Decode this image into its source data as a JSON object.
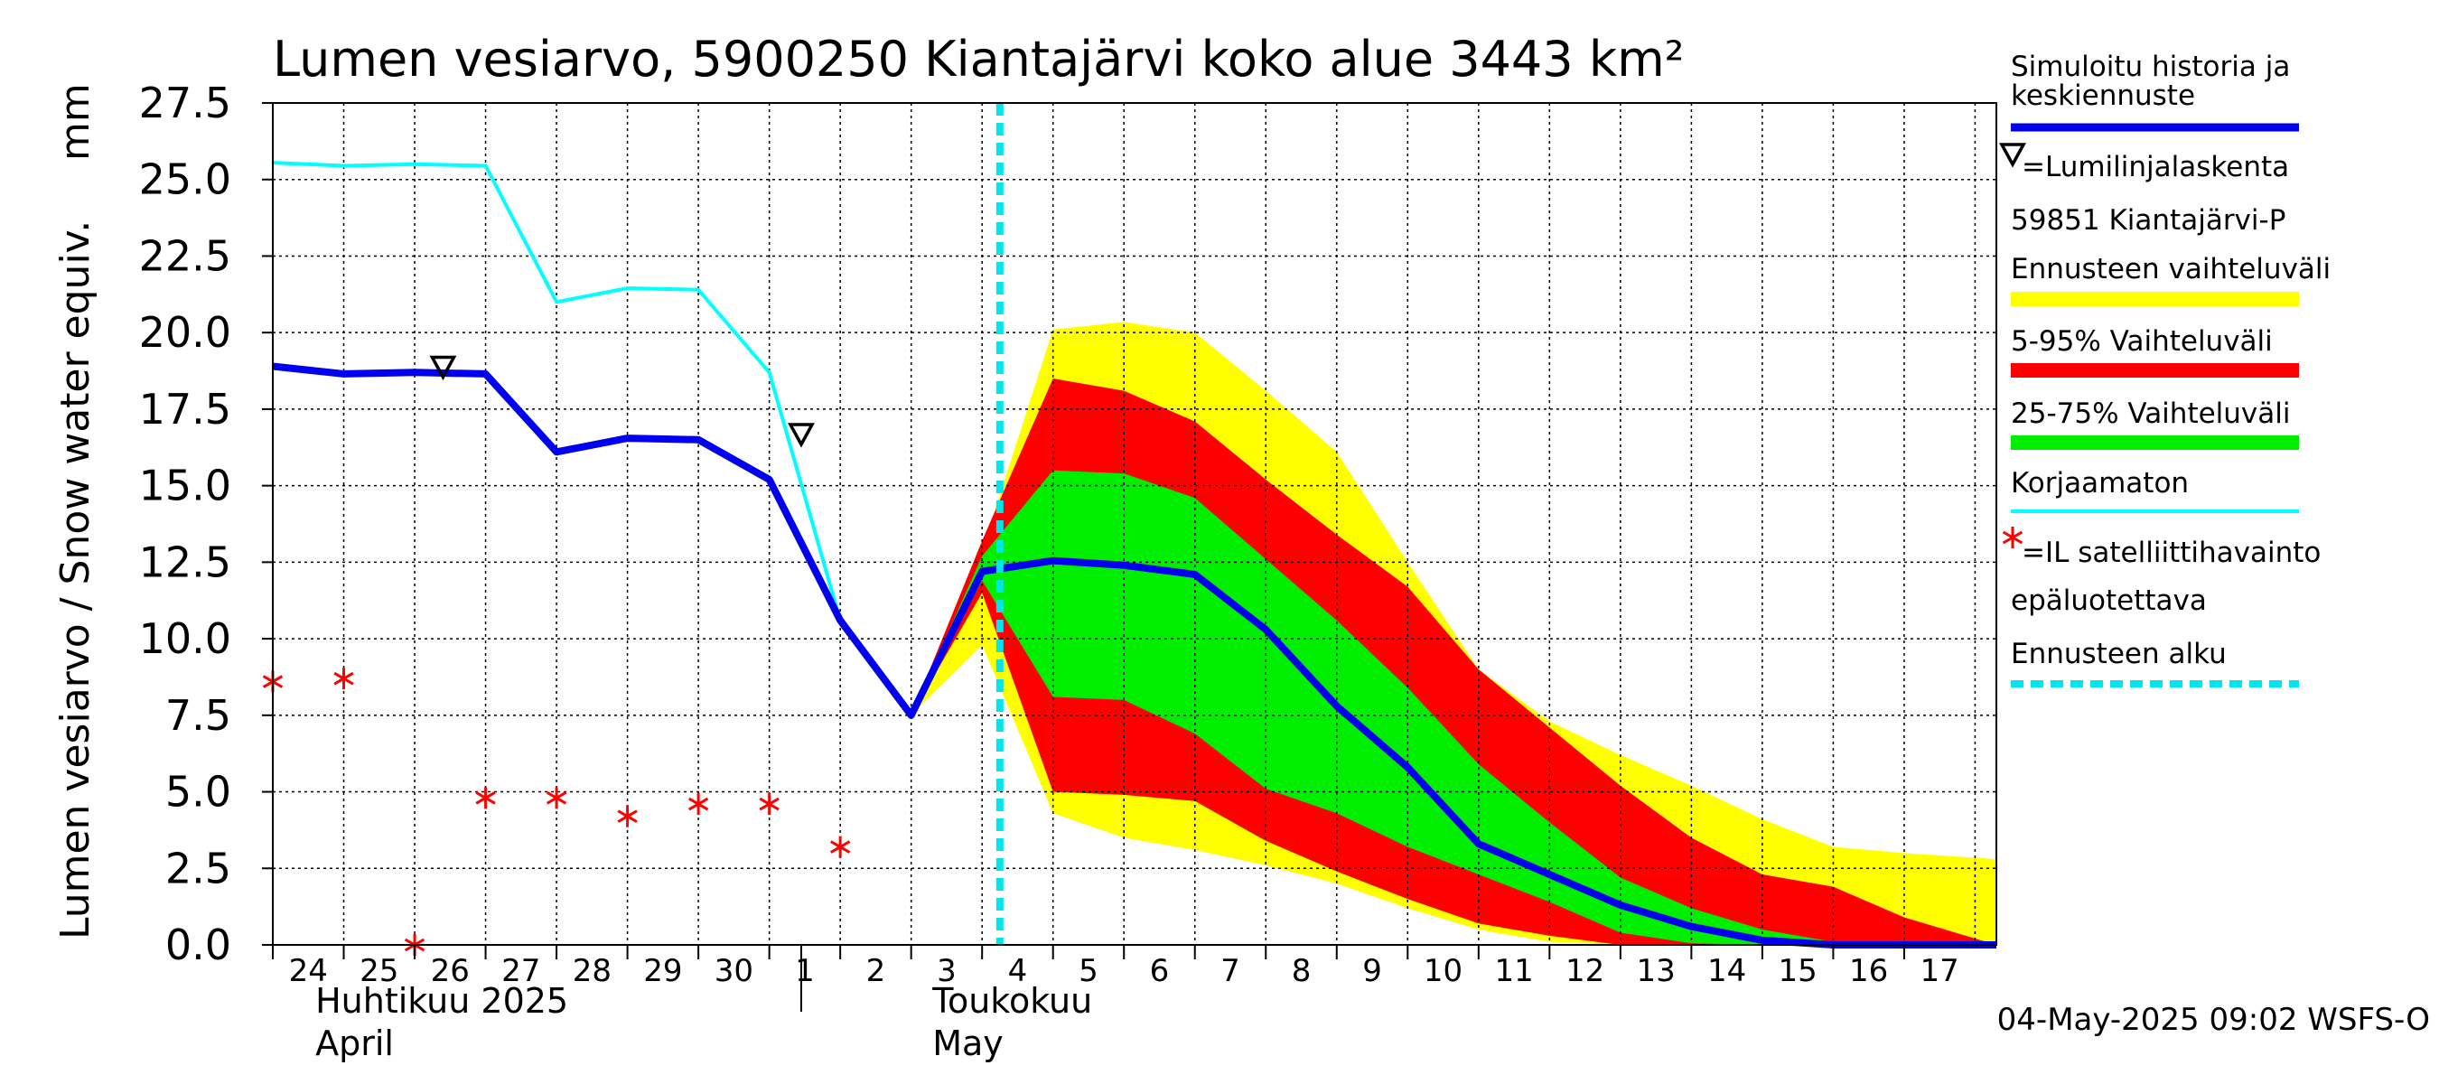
{
  "chart_data": {
    "type": "line",
    "title": "Lumen vesiarvo, 5900250 Kiantajärvi koko alue 3443 km²",
    "ylabel": "Lumen vesiarvo / Snow water equiv.",
    "yunit": "mm",
    "ylim": [
      0,
      27.5
    ],
    "yticks": [
      "0.0",
      "2.5",
      "5.0",
      "7.5",
      "10.0",
      "12.5",
      "15.0",
      "17.5",
      "20.0",
      "22.5",
      "25.0",
      "27.5"
    ],
    "xlim": [
      23.5,
      47.8
    ],
    "xticks": [
      {
        "x": 24,
        "label": "24"
      },
      {
        "x": 25,
        "label": "25"
      },
      {
        "x": 26,
        "label": "26"
      },
      {
        "x": 27,
        "label": "27"
      },
      {
        "x": 28,
        "label": "28"
      },
      {
        "x": 29,
        "label": "29"
      },
      {
        "x": 30,
        "label": "30"
      },
      {
        "x": 31,
        "label": "1"
      },
      {
        "x": 32,
        "label": "2"
      },
      {
        "x": 33,
        "label": "3"
      },
      {
        "x": 34,
        "label": "4"
      },
      {
        "x": 35,
        "label": "5"
      },
      {
        "x": 36,
        "label": "6"
      },
      {
        "x": 37,
        "label": "7"
      },
      {
        "x": 38,
        "label": "8"
      },
      {
        "x": 39,
        "label": "9"
      },
      {
        "x": 40,
        "label": "10"
      },
      {
        "x": 41,
        "label": "11"
      },
      {
        "x": 42,
        "label": "12"
      },
      {
        "x": 43,
        "label": "13"
      },
      {
        "x": 44,
        "label": "14"
      },
      {
        "x": 45,
        "label": "15"
      },
      {
        "x": 46,
        "label": "16"
      },
      {
        "x": 47,
        "label": "17"
      }
    ],
    "month_labels": [
      {
        "x": 24.1,
        "line1": "Huhtikuu  2025",
        "line2": "April"
      },
      {
        "x": 32.8,
        "line1": "Toukokuu",
        "line2": "May"
      }
    ],
    "month_separator_x": 30.95,
    "forecast_start_x": 33.75,
    "series": [
      {
        "name": "Simuloitu historia ja keskiennuste",
        "color": "#0000ee",
        "x": [
          23.5,
          24.5,
          25.5,
          26.5,
          27.5,
          28.5,
          29.5,
          30.5,
          31.5,
          32.5,
          33.5,
          34.5,
          35.5,
          36.5,
          37.5,
          38.5,
          39.5,
          40.5,
          41.5,
          42.5,
          43.5,
          44.5,
          45.5,
          46.5,
          47.8
        ],
        "values": [
          18.9,
          18.65,
          18.7,
          18.65,
          16.1,
          16.55,
          16.5,
          15.2,
          10.6,
          7.5,
          12.2,
          12.55,
          12.4,
          12.1,
          10.3,
          7.8,
          5.8,
          3.3,
          2.3,
          1.3,
          0.6,
          0.15,
          0.0,
          0.0,
          0.0
        ]
      },
      {
        "name": "Korjaamaton",
        "color": "#00ffff",
        "x": [
          23.5,
          24.5,
          25.5,
          26.5,
          27.5,
          28.5,
          29.5,
          30.5,
          31.5,
          32.5
        ],
        "values": [
          25.55,
          25.45,
          25.5,
          25.45,
          21.0,
          21.45,
          21.4,
          18.7,
          10.6,
          7.5
        ]
      }
    ],
    "bands": [
      {
        "name": "Ennusteen vaihteluväli",
        "color": "#ffff00",
        "x": [
          32.5,
          33.5,
          34.5,
          35.5,
          36.5,
          37.5,
          38.5,
          39.5,
          40.5,
          41.5,
          42.5,
          43.5,
          44.5,
          45.5,
          46.5,
          47.8
        ],
        "upper": [
          7.5,
          12.9,
          20.1,
          20.35,
          20.0,
          18.1,
          16.1,
          12.5,
          9.0,
          7.3,
          6.2,
          5.2,
          4.1,
          3.2,
          3.0,
          2.8
        ],
        "lower": [
          7.5,
          9.8,
          4.3,
          3.5,
          3.1,
          2.6,
          2.0,
          1.2,
          0.5,
          0.1,
          0.0,
          0.0,
          0.0,
          0.0,
          0.0,
          0.0
        ]
      },
      {
        "name": "5-95% Vaihteluväli",
        "color": "#ff0000",
        "x": [
          32.5,
          33.5,
          34.5,
          35.5,
          36.5,
          37.5,
          38.5,
          39.5,
          40.5,
          41.5,
          42.5,
          43.5,
          44.5,
          45.5,
          46.5,
          47.8
        ],
        "upper": [
          7.5,
          13.2,
          18.5,
          18.1,
          17.1,
          15.2,
          13.4,
          11.7,
          9.0,
          7.1,
          5.2,
          3.5,
          2.3,
          1.9,
          0.9,
          0.0
        ],
        "lower": [
          7.5,
          11.5,
          5.0,
          4.9,
          4.7,
          3.4,
          2.4,
          1.5,
          0.7,
          0.3,
          0.0,
          0.0,
          0.0,
          0.0,
          0.0,
          0.0
        ]
      },
      {
        "name": "25-75% Vaihteluväli",
        "color": "#00ee00",
        "x": [
          32.5,
          33.5,
          34.5,
          35.5,
          36.5,
          37.5,
          38.5,
          39.5,
          40.5,
          41.5,
          42.5,
          43.5,
          44.5,
          45.5,
          46.5,
          47.8
        ],
        "upper": [
          7.5,
          12.7,
          15.5,
          15.4,
          14.6,
          12.6,
          10.6,
          8.4,
          5.9,
          4.0,
          2.2,
          1.2,
          0.5,
          0.1,
          0.0,
          0.0
        ],
        "lower": [
          7.5,
          11.9,
          8.1,
          8.0,
          6.9,
          5.1,
          4.3,
          3.2,
          2.3,
          1.4,
          0.4,
          0.05,
          0.0,
          0.0,
          0.0,
          0.0
        ]
      }
    ],
    "snowline_markers": {
      "name": "=Lumilinjalaskenta",
      "station": "59851 Kiantajärvi-P",
      "points": [
        {
          "x": 25.9,
          "y": 18.9
        },
        {
          "x": 30.95,
          "y": 16.7
        }
      ]
    },
    "satellite_points": {
      "name": "=IL satelliittihavainto",
      "color": "#ff0000",
      "points": [
        {
          "x": 23.5,
          "y": 8.6
        },
        {
          "x": 24.5,
          "y": 8.7
        },
        {
          "x": 25.5,
          "y": 0.0
        },
        {
          "x": 26.5,
          "y": 4.8
        },
        {
          "x": 27.5,
          "y": 4.8
        },
        {
          "x": 28.5,
          "y": 4.2
        },
        {
          "x": 29.5,
          "y": 4.6
        },
        {
          "x": 30.5,
          "y": 4.6
        },
        {
          "x": 31.5,
          "y": 3.2
        }
      ]
    },
    "legend": [
      {
        "label": "Simuloitu historia ja",
        "label2": "keskiennuste",
        "kind": "line",
        "color": "#0000ee"
      },
      {
        "label": "=Lumilinjalaskenta",
        "kind": "triangle"
      },
      {
        "label": "59851 Kiantajärvi-P",
        "kind": "text"
      },
      {
        "label": "Ennusteen vaihteluväli",
        "kind": "line",
        "color": "#ffff00"
      },
      {
        "label": "5-95% Vaihteluväli",
        "kind": "line",
        "color": "#ff0000"
      },
      {
        "label": "25-75% Vaihteluväli",
        "kind": "line",
        "color": "#00ee00"
      },
      {
        "label": "Korjaamaton",
        "kind": "thinline",
        "color": "#00ffff"
      },
      {
        "label": "=IL satelliittihavainto",
        "kind": "star",
        "color": "#ff0000"
      },
      {
        "label": "epäluotettava",
        "kind": "text"
      },
      {
        "label": "Ennusteen alku",
        "kind": "dash",
        "color": "#00e5ee"
      }
    ],
    "footer": "04-May-2025 09:02 WSFS-O"
  }
}
